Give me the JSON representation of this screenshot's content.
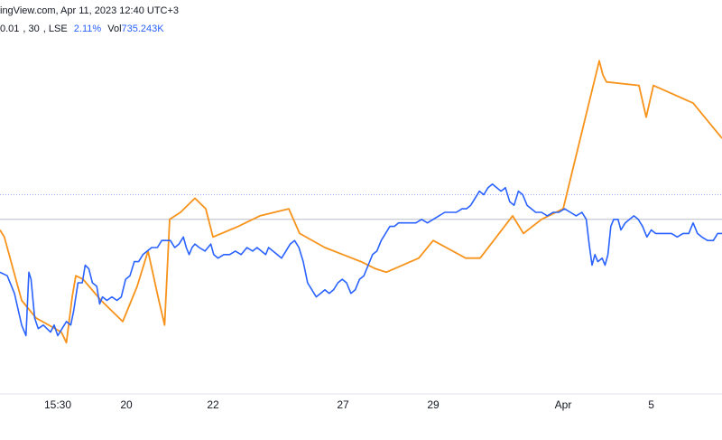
{
  "header": {
    "line1": "ingView.com, Apr 11, 2023 12:40 UTC+3",
    "line2": {
      "price": "0.01",
      "interval": "30",
      "exchange": "LSE",
      "change": "2.11%",
      "volume_label": "Vol",
      "volume_value": "735.243K"
    }
  },
  "colors": {
    "series_blue": "#2962ff",
    "series_orange": "#f7931a",
    "ref_line_dotted": "#9aa7ff",
    "ref_line_solid": "#b8bcc8",
    "axis_line": "#e0e3eb"
  },
  "chart_data": {
    "type": "line",
    "title": "",
    "xlabel": "",
    "ylabel": "",
    "x_ticks": [
      {
        "label": "15:30",
        "pos": 0.08
      },
      {
        "label": "20",
        "pos": 0.175
      },
      {
        "label": "22",
        "pos": 0.295
      },
      {
        "label": "27",
        "pos": 0.475
      },
      {
        "label": "29",
        "pos": 0.6
      },
      {
        "label": "Apr",
        "pos": 0.78
      },
      {
        "label": "5",
        "pos": 0.902
      }
    ],
    "ylim": [
      0,
      100
    ],
    "reference_lines": [
      {
        "value": 55,
        "style": "dotted"
      },
      {
        "value": 48,
        "style": "solid"
      }
    ],
    "series": [
      {
        "color": "orange",
        "points": [
          [
            0,
            45
          ],
          [
            0.006,
            43
          ],
          [
            0.03,
            25
          ],
          [
            0.05,
            20
          ],
          [
            0.085,
            16
          ],
          [
            0.092,
            13
          ],
          [
            0.1,
            26
          ],
          [
            0.105,
            32
          ],
          [
            0.115,
            31
          ],
          [
            0.14,
            25
          ],
          [
            0.17,
            19
          ],
          [
            0.19,
            29
          ],
          [
            0.205,
            39
          ],
          [
            0.22,
            25
          ],
          [
            0.228,
            18
          ],
          [
            0.235,
            48
          ],
          [
            0.25,
            50
          ],
          [
            0.27,
            54
          ],
          [
            0.285,
            51
          ],
          [
            0.295,
            43
          ],
          [
            0.33,
            46
          ],
          [
            0.36,
            49
          ],
          [
            0.4,
            51
          ],
          [
            0.415,
            44
          ],
          [
            0.45,
            40
          ],
          [
            0.5,
            36
          ],
          [
            0.52,
            34
          ],
          [
            0.535,
            33
          ],
          [
            0.58,
            37
          ],
          [
            0.6,
            42
          ],
          [
            0.645,
            37
          ],
          [
            0.665,
            37
          ],
          [
            0.71,
            49
          ],
          [
            0.725,
            44
          ],
          [
            0.75,
            48
          ],
          [
            0.78,
            51
          ],
          [
            0.83,
            93
          ],
          [
            0.835,
            89
          ],
          [
            0.84,
            87
          ],
          [
            0.885,
            86
          ],
          [
            0.895,
            77
          ],
          [
            0.905,
            86
          ],
          [
            0.96,
            81
          ],
          [
            1,
            71
          ]
        ]
      },
      {
        "color": "blue",
        "points": [
          [
            0,
            33
          ],
          [
            0.01,
            32
          ],
          [
            0.02,
            27
          ],
          [
            0.03,
            18
          ],
          [
            0.036,
            15
          ],
          [
            0.04,
            33
          ],
          [
            0.043,
            31
          ],
          [
            0.048,
            20
          ],
          [
            0.053,
            17
          ],
          [
            0.06,
            18
          ],
          [
            0.065,
            17
          ],
          [
            0.07,
            16
          ],
          [
            0.075,
            18
          ],
          [
            0.08,
            15
          ],
          [
            0.086,
            17
          ],
          [
            0.092,
            19
          ],
          [
            0.098,
            18
          ],
          [
            0.102,
            22
          ],
          [
            0.108,
            30
          ],
          [
            0.114,
            30
          ],
          [
            0.118,
            35
          ],
          [
            0.123,
            34
          ],
          [
            0.128,
            30
          ],
          [
            0.134,
            29
          ],
          [
            0.138,
            24
          ],
          [
            0.142,
            26
          ],
          [
            0.148,
            25
          ],
          [
            0.155,
            26
          ],
          [
            0.162,
            25
          ],
          [
            0.168,
            26
          ],
          [
            0.174,
            31
          ],
          [
            0.18,
            32
          ],
          [
            0.186,
            36
          ],
          [
            0.192,
            36
          ],
          [
            0.198,
            38
          ],
          [
            0.204,
            39
          ],
          [
            0.21,
            40
          ],
          [
            0.218,
            40
          ],
          [
            0.224,
            42
          ],
          [
            0.23,
            42
          ],
          [
            0.236,
            42
          ],
          [
            0.242,
            40
          ],
          [
            0.248,
            41
          ],
          [
            0.254,
            43
          ],
          [
            0.258,
            40
          ],
          [
            0.262,
            38
          ],
          [
            0.266,
            40
          ],
          [
            0.27,
            41
          ],
          [
            0.276,
            40
          ],
          [
            0.284,
            39
          ],
          [
            0.292,
            41
          ],
          [
            0.296,
            38
          ],
          [
            0.302,
            37
          ],
          [
            0.31,
            38
          ],
          [
            0.318,
            38
          ],
          [
            0.326,
            39
          ],
          [
            0.334,
            38
          ],
          [
            0.342,
            40
          ],
          [
            0.35,
            39
          ],
          [
            0.356,
            40
          ],
          [
            0.362,
            39
          ],
          [
            0.368,
            38
          ],
          [
            0.372,
            40
          ],
          [
            0.378,
            39
          ],
          [
            0.384,
            38
          ],
          [
            0.39,
            37
          ],
          [
            0.396,
            39
          ],
          [
            0.402,
            41
          ],
          [
            0.408,
            42
          ],
          [
            0.414,
            40
          ],
          [
            0.42,
            36
          ],
          [
            0.426,
            30
          ],
          [
            0.432,
            28
          ],
          [
            0.438,
            26
          ],
          [
            0.444,
            27
          ],
          [
            0.45,
            28
          ],
          [
            0.456,
            27
          ],
          [
            0.462,
            28
          ],
          [
            0.468,
            30
          ],
          [
            0.474,
            31
          ],
          [
            0.48,
            30
          ],
          [
            0.486,
            27
          ],
          [
            0.492,
            28
          ],
          [
            0.498,
            31
          ],
          [
            0.504,
            32
          ],
          [
            0.51,
            35
          ],
          [
            0.516,
            38
          ],
          [
            0.522,
            39
          ],
          [
            0.528,
            42
          ],
          [
            0.534,
            44
          ],
          [
            0.54,
            46
          ],
          [
            0.546,
            46
          ],
          [
            0.552,
            47
          ],
          [
            0.56,
            47
          ],
          [
            0.568,
            47
          ],
          [
            0.576,
            47
          ],
          [
            0.584,
            48
          ],
          [
            0.592,
            47
          ],
          [
            0.6,
            48
          ],
          [
            0.608,
            49
          ],
          [
            0.616,
            50
          ],
          [
            0.624,
            50
          ],
          [
            0.632,
            50
          ],
          [
            0.64,
            51
          ],
          [
            0.646,
            51
          ],
          [
            0.652,
            52
          ],
          [
            0.658,
            54
          ],
          [
            0.664,
            56
          ],
          [
            0.67,
            55
          ],
          [
            0.676,
            57
          ],
          [
            0.682,
            58
          ],
          [
            0.688,
            57
          ],
          [
            0.694,
            56
          ],
          [
            0.7,
            57
          ],
          [
            0.706,
            53
          ],
          [
            0.712,
            52
          ],
          [
            0.718,
            56
          ],
          [
            0.724,
            55
          ],
          [
            0.73,
            52
          ],
          [
            0.736,
            51
          ],
          [
            0.742,
            50
          ],
          [
            0.75,
            50
          ],
          [
            0.758,
            49
          ],
          [
            0.766,
            50
          ],
          [
            0.774,
            50
          ],
          [
            0.782,
            51
          ],
          [
            0.79,
            50
          ],
          [
            0.798,
            49
          ],
          [
            0.806,
            50
          ],
          [
            0.812,
            48
          ],
          [
            0.816,
            41
          ],
          [
            0.82,
            35
          ],
          [
            0.824,
            38
          ],
          [
            0.828,
            36
          ],
          [
            0.834,
            37
          ],
          [
            0.838,
            35
          ],
          [
            0.842,
            38
          ],
          [
            0.846,
            46
          ],
          [
            0.85,
            48
          ],
          [
            0.856,
            48
          ],
          [
            0.86,
            45
          ],
          [
            0.866,
            47
          ],
          [
            0.872,
            48
          ],
          [
            0.878,
            49
          ],
          [
            0.884,
            48
          ],
          [
            0.89,
            46
          ],
          [
            0.896,
            43
          ],
          [
            0.902,
            45
          ],
          [
            0.908,
            44
          ],
          [
            0.914,
            44
          ],
          [
            0.922,
            44
          ],
          [
            0.93,
            44
          ],
          [
            0.938,
            43
          ],
          [
            0.946,
            44
          ],
          [
            0.954,
            44
          ],
          [
            0.96,
            47
          ],
          [
            0.966,
            44
          ],
          [
            0.972,
            43
          ],
          [
            0.98,
            42
          ],
          [
            0.988,
            42
          ],
          [
            0.994,
            44
          ],
          [
            1,
            44
          ]
        ]
      }
    ]
  }
}
